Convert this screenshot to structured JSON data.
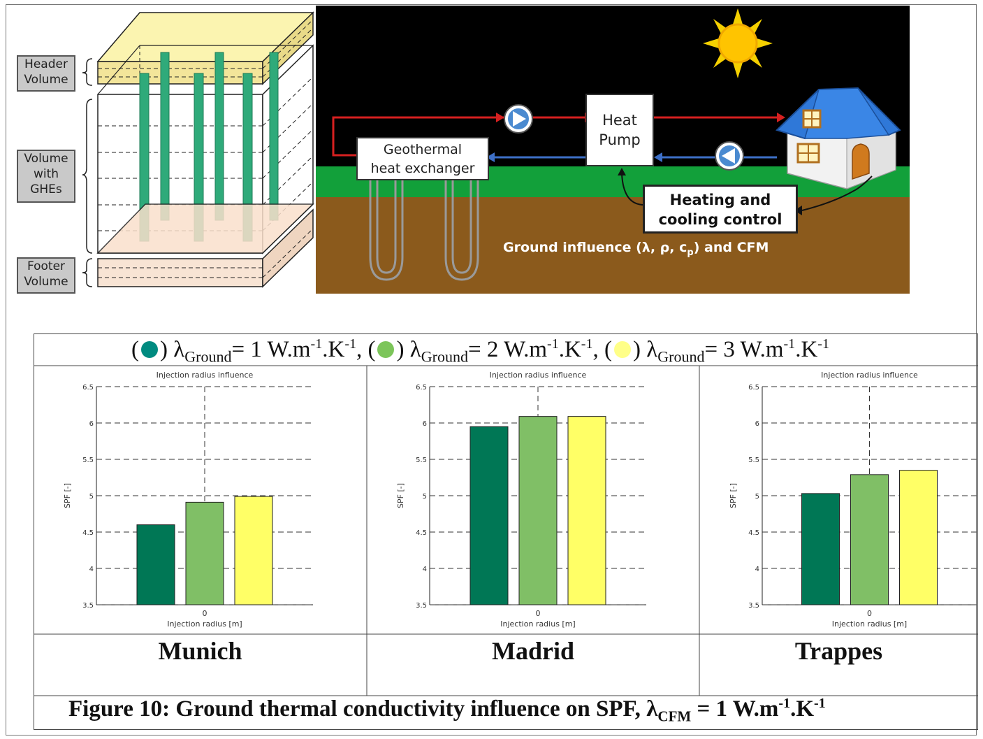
{
  "diagram": {
    "labels": {
      "header_volume": [
        "Header",
        "Volume"
      ],
      "volume_with_ghes": [
        "Volume",
        "with",
        "GHEs"
      ],
      "footer_volume": [
        "Footer",
        "Volume"
      ]
    },
    "geothermal_label": [
      "Geothermal",
      "heat exchanger"
    ],
    "heat_pump_label": [
      "Heat",
      "Pump"
    ],
    "control_label": [
      "Heating and",
      "cooling control"
    ],
    "ground_influence": {
      "prefix": "Ground influence (",
      "lambda": "λ",
      "sep1": ", ",
      "rho": "ρ",
      "sep2": ", ",
      "cp": "c",
      "cp_sub": "p",
      "suffix": ") and CFM"
    }
  },
  "legend": {
    "items": [
      {
        "text": "λ",
        "sub": "Ground",
        "rest": "= 1 W.m",
        "sup1": "-1",
        "mid": ".K",
        "sup2": "-1",
        "trail": ", ",
        "color": "#008B80"
      },
      {
        "text": "λ",
        "sub": "Ground",
        "rest": "= 2 W.m",
        "sup1": "-1",
        "mid": ".K",
        "sup2": "-1",
        "trail": ", ",
        "color": "#7CC55A"
      },
      {
        "text": "λ",
        "sub": "Ground",
        "rest": "= 3 W.m",
        "sup1": "-1",
        "mid": ".K",
        "sup2": "-1",
        "trail": "",
        "color": "#FFFF88"
      }
    ]
  },
  "chart_data": [
    {
      "type": "bar",
      "title": "Injection radius influence",
      "xlabel": "Injection radius [m]",
      "ylabel": "SPF [-]",
      "categories": [
        "0"
      ],
      "ylim": [
        3.5,
        6.5
      ],
      "yticks": [
        "3.5",
        "4",
        "4.5",
        "5",
        "5.5",
        "6",
        "6.5"
      ],
      "grid": true,
      "series": [
        {
          "values": [
            4.6
          ],
          "color": "#007755"
        },
        {
          "values": [
            4.91
          ],
          "color": "#80BF66"
        },
        {
          "values": [
            4.99
          ],
          "color": "#FFFF66"
        }
      ],
      "city": "Munich"
    },
    {
      "type": "bar",
      "title": "Injection radius influence",
      "xlabel": "Injection radius [m]",
      "ylabel": "SPF [-]",
      "categories": [
        "0"
      ],
      "ylim": [
        3.5,
        6.5
      ],
      "yticks": [
        "3.5",
        "4",
        "4.5",
        "5",
        "5.5",
        "6",
        "6.5"
      ],
      "grid": true,
      "series": [
        {
          "values": [
            5.95
          ],
          "color": "#007755"
        },
        {
          "values": [
            6.09
          ],
          "color": "#80BF66"
        },
        {
          "values": [
            6.09
          ],
          "color": "#FFFF66"
        }
      ],
      "city": "Madrid"
    },
    {
      "type": "bar",
      "title": "Injection radius influence",
      "xlabel": "Injection radius [m]",
      "ylabel": "SPF [-]",
      "categories": [
        "0"
      ],
      "ylim": [
        3.5,
        6.5
      ],
      "yticks": [
        "3.5",
        "4",
        "4.5",
        "5",
        "5.5",
        "6",
        "6.5"
      ],
      "grid": true,
      "series": [
        {
          "values": [
            5.03
          ],
          "color": "#007755"
        },
        {
          "values": [
            5.29
          ],
          "color": "#80BF66"
        },
        {
          "values": [
            5.35
          ],
          "color": "#FFFF66"
        }
      ],
      "city": "Trappes"
    }
  ],
  "caption": {
    "prefix": "Figure 10: Ground thermal conductivity influence on SPF, ",
    "lambda": "λ",
    "sub": "CFM",
    "rest": " = 1 W.m",
    "sup1": "-1",
    "mid": ".K",
    "sup2": "-1"
  }
}
